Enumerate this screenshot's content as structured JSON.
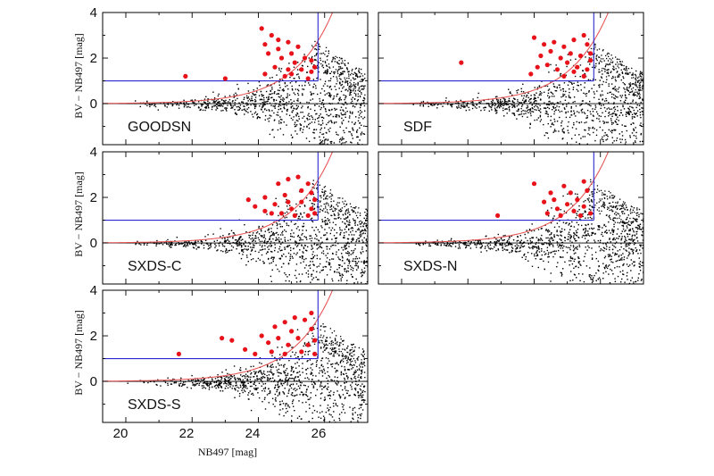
{
  "chart_data": {
    "type": "scatter",
    "xlabel": "NB497 [mag]",
    "ylabel": "BV − NB497 [mag]",
    "xlim": [
      19.3,
      27.3
    ],
    "ylim": [
      -1.8,
      4.0
    ],
    "xticks": [
      "20",
      "22",
      "24",
      "26"
    ],
    "yticks": [
      "0",
      "2",
      "4"
    ],
    "colors": {
      "selected": "#e8121a",
      "field": "#000000",
      "cut_lines": "#2a2ad0",
      "error_curve": "#e44a4a"
    },
    "reference_lines": {
      "color_cut": 1.0,
      "magnitude_limit": 25.8
    },
    "error_curve_note": "red curve rising from ~0 at bright magnitudes to 4 near NB497~26.3",
    "panels": [
      {
        "name": "GOODSN",
        "field_limit": 27.2,
        "points": [
          [
            21.8,
            1.2
          ],
          [
            23.0,
            1.1
          ],
          [
            24.1,
            3.3
          ],
          [
            24.4,
            3.0
          ],
          [
            24.2,
            2.6
          ],
          [
            24.6,
            2.8
          ],
          [
            24.9,
            2.7
          ],
          [
            25.2,
            2.5
          ],
          [
            24.3,
            2.2
          ],
          [
            24.7,
            2.0
          ],
          [
            25.0,
            2.2
          ],
          [
            25.4,
            2.0
          ],
          [
            25.6,
            1.9
          ],
          [
            24.5,
            1.6
          ],
          [
            24.9,
            1.5
          ],
          [
            25.3,
            1.5
          ],
          [
            25.6,
            1.4
          ],
          [
            24.2,
            1.3
          ],
          [
            24.8,
            1.2
          ],
          [
            25.5,
            1.1
          ],
          [
            25.1,
            1.8
          ],
          [
            24.6,
            2.4
          ],
          [
            25.7,
            1.6
          ],
          [
            25.0,
            1.3
          ]
        ]
      },
      {
        "name": "SDF",
        "field_limit": 27.3,
        "points": [
          [
            21.8,
            1.8
          ],
          [
            23.9,
            1.3
          ],
          [
            24.0,
            2.9
          ],
          [
            24.3,
            2.6
          ],
          [
            24.6,
            2.7
          ],
          [
            24.9,
            2.5
          ],
          [
            25.2,
            2.8
          ],
          [
            25.5,
            3.0
          ],
          [
            25.6,
            2.6
          ],
          [
            24.2,
            2.1
          ],
          [
            24.5,
            2.3
          ],
          [
            24.8,
            2.0
          ],
          [
            25.1,
            2.2
          ],
          [
            25.4,
            2.1
          ],
          [
            25.7,
            2.2
          ],
          [
            24.4,
            1.7
          ],
          [
            24.7,
            1.5
          ],
          [
            25.0,
            1.8
          ],
          [
            25.3,
            1.6
          ],
          [
            25.6,
            1.5
          ],
          [
            24.9,
            1.2
          ],
          [
            25.5,
            1.2
          ],
          [
            25.7,
            1.9
          ],
          [
            24.1,
            1.6
          ],
          [
            25.2,
            1.4
          ]
        ]
      },
      {
        "name": "SXDS-C",
        "field_limit": 27.3,
        "points": [
          [
            23.7,
            1.9
          ],
          [
            23.9,
            1.6
          ],
          [
            24.2,
            2.0
          ],
          [
            24.5,
            1.7
          ],
          [
            24.6,
            2.6
          ],
          [
            24.9,
            2.8
          ],
          [
            25.2,
            2.9
          ],
          [
            25.5,
            2.6
          ],
          [
            25.6,
            2.2
          ],
          [
            24.8,
            2.1
          ],
          [
            25.0,
            1.5
          ],
          [
            25.3,
            1.8
          ],
          [
            25.6,
            1.5
          ],
          [
            24.4,
            1.3
          ],
          [
            24.7,
            1.3
          ],
          [
            25.1,
            1.2
          ],
          [
            25.5,
            1.2
          ],
          [
            25.7,
            1.9
          ],
          [
            24.2,
            1.4
          ],
          [
            25.3,
            2.3
          ],
          [
            24.9,
            1.8
          ],
          [
            25.7,
            1.3
          ]
        ]
      },
      {
        "name": "SXDS-N",
        "field_limit": 27.3,
        "points": [
          [
            22.9,
            1.2
          ],
          [
            24.0,
            2.6
          ],
          [
            24.3,
            1.8
          ],
          [
            24.5,
            2.2
          ],
          [
            24.7,
            1.5
          ],
          [
            24.9,
            2.5
          ],
          [
            25.1,
            2.2
          ],
          [
            25.3,
            1.9
          ],
          [
            25.5,
            2.7
          ],
          [
            25.6,
            2.3
          ],
          [
            24.4,
            1.3
          ],
          [
            24.8,
            1.2
          ],
          [
            25.2,
            1.4
          ],
          [
            25.5,
            1.6
          ],
          [
            25.7,
            1.3
          ],
          [
            24.6,
            1.9
          ],
          [
            25.0,
            1.7
          ],
          [
            25.4,
            1.2
          ]
        ]
      },
      {
        "name": "SXDS-S",
        "field_limit": 27.2,
        "points": [
          [
            21.6,
            1.2
          ],
          [
            22.9,
            1.9
          ],
          [
            23.2,
            1.8
          ],
          [
            23.6,
            1.4
          ],
          [
            24.1,
            2.0
          ],
          [
            24.3,
            1.7
          ],
          [
            24.5,
            2.4
          ],
          [
            24.8,
            2.6
          ],
          [
            25.1,
            2.8
          ],
          [
            25.4,
            2.7
          ],
          [
            25.6,
            2.3
          ],
          [
            24.6,
            1.9
          ],
          [
            24.9,
            1.6
          ],
          [
            25.2,
            1.9
          ],
          [
            25.5,
            1.6
          ],
          [
            24.4,
            1.3
          ],
          [
            24.8,
            1.2
          ],
          [
            25.3,
            1.3
          ],
          [
            25.7,
            1.2
          ],
          [
            23.9,
            1.2
          ],
          [
            25.0,
            2.2
          ],
          [
            25.7,
            1.8
          ],
          [
            25.6,
            3.0
          ]
        ]
      }
    ]
  }
}
